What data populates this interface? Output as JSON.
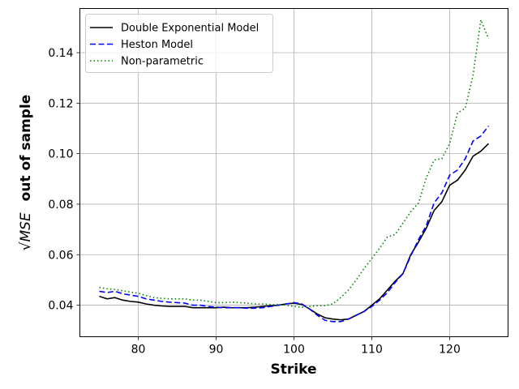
{
  "chart_data": {
    "type": "line",
    "xlabel": "Strike",
    "ylabel_prefix": "√MSE",
    "ylabel_suffix": "out of sample",
    "xlim": [
      72.5,
      127.5
    ],
    "ylim": [
      0.0275,
      0.1575
    ],
    "xticks": [
      80,
      90,
      100,
      110,
      120
    ],
    "yticks": [
      0.04,
      0.06,
      0.08,
      0.1,
      0.12,
      0.14
    ],
    "ytick_labels": [
      "0.04",
      "0.06",
      "0.08",
      "0.10",
      "0.12",
      "0.14"
    ],
    "grid": true,
    "legend_position": "top-left",
    "x": [
      75,
      76,
      77,
      78,
      79,
      80,
      81,
      82,
      83,
      84,
      85,
      86,
      87,
      88,
      89,
      90,
      91,
      92,
      93,
      94,
      95,
      96,
      97,
      98,
      99,
      100,
      101,
      102,
      103,
      104,
      105,
      106,
      107,
      108,
      109,
      110,
      111,
      112,
      113,
      114,
      115,
      116,
      117,
      118,
      119,
      120,
      121,
      122,
      123,
      124,
      125
    ],
    "series": [
      {
        "name": "Double Exponential Model",
        "color": "#000000",
        "style": "solid",
        "values": [
          0.0435,
          0.0425,
          0.043,
          0.042,
          0.0415,
          0.0412,
          0.0405,
          0.04,
          0.0397,
          0.0395,
          0.0395,
          0.0395,
          0.039,
          0.039,
          0.039,
          0.039,
          0.0392,
          0.039,
          0.039,
          0.039,
          0.0392,
          0.0395,
          0.0398,
          0.04,
          0.0405,
          0.0408,
          0.0403,
          0.0385,
          0.0365,
          0.035,
          0.0345,
          0.0342,
          0.0345,
          0.036,
          0.0375,
          0.04,
          0.0425,
          0.046,
          0.0495,
          0.0525,
          0.06,
          0.065,
          0.0705,
          0.0775,
          0.081,
          0.0875,
          0.0895,
          0.0935,
          0.099,
          0.101,
          0.104
        ]
      },
      {
        "name": "Heston Model",
        "color": "#0000ff",
        "style": "dashed",
        "values": [
          0.0455,
          0.045,
          0.0455,
          0.0445,
          0.044,
          0.0435,
          0.0425,
          0.042,
          0.0415,
          0.0412,
          0.041,
          0.0408,
          0.04,
          0.04,
          0.0395,
          0.0392,
          0.039,
          0.039,
          0.039,
          0.0388,
          0.0388,
          0.039,
          0.0395,
          0.04,
          0.0405,
          0.041,
          0.0405,
          0.0385,
          0.036,
          0.034,
          0.0335,
          0.0335,
          0.0345,
          0.036,
          0.0375,
          0.0395,
          0.042,
          0.045,
          0.049,
          0.0525,
          0.0595,
          0.066,
          0.0715,
          0.0805,
          0.0845,
          0.0915,
          0.0935,
          0.098,
          0.105,
          0.107,
          0.111
        ]
      },
      {
        "name": "Non-parametric",
        "color": "#008000",
        "style": "dotted",
        "values": [
          0.047,
          0.0465,
          0.0462,
          0.0457,
          0.0452,
          0.0447,
          0.0438,
          0.043,
          0.0427,
          0.0425,
          0.0425,
          0.0425,
          0.042,
          0.042,
          0.0415,
          0.041,
          0.041,
          0.0412,
          0.041,
          0.0408,
          0.0405,
          0.0405,
          0.0402,
          0.0402,
          0.04,
          0.0395,
          0.0392,
          0.0395,
          0.0398,
          0.0398,
          0.0405,
          0.043,
          0.046,
          0.05,
          0.0545,
          0.0585,
          0.0625,
          0.067,
          0.068,
          0.0725,
          0.077,
          0.0805,
          0.0905,
          0.0975,
          0.098,
          0.104,
          0.116,
          0.118,
          0.131,
          0.153,
          0.1455
        ]
      }
    ]
  }
}
